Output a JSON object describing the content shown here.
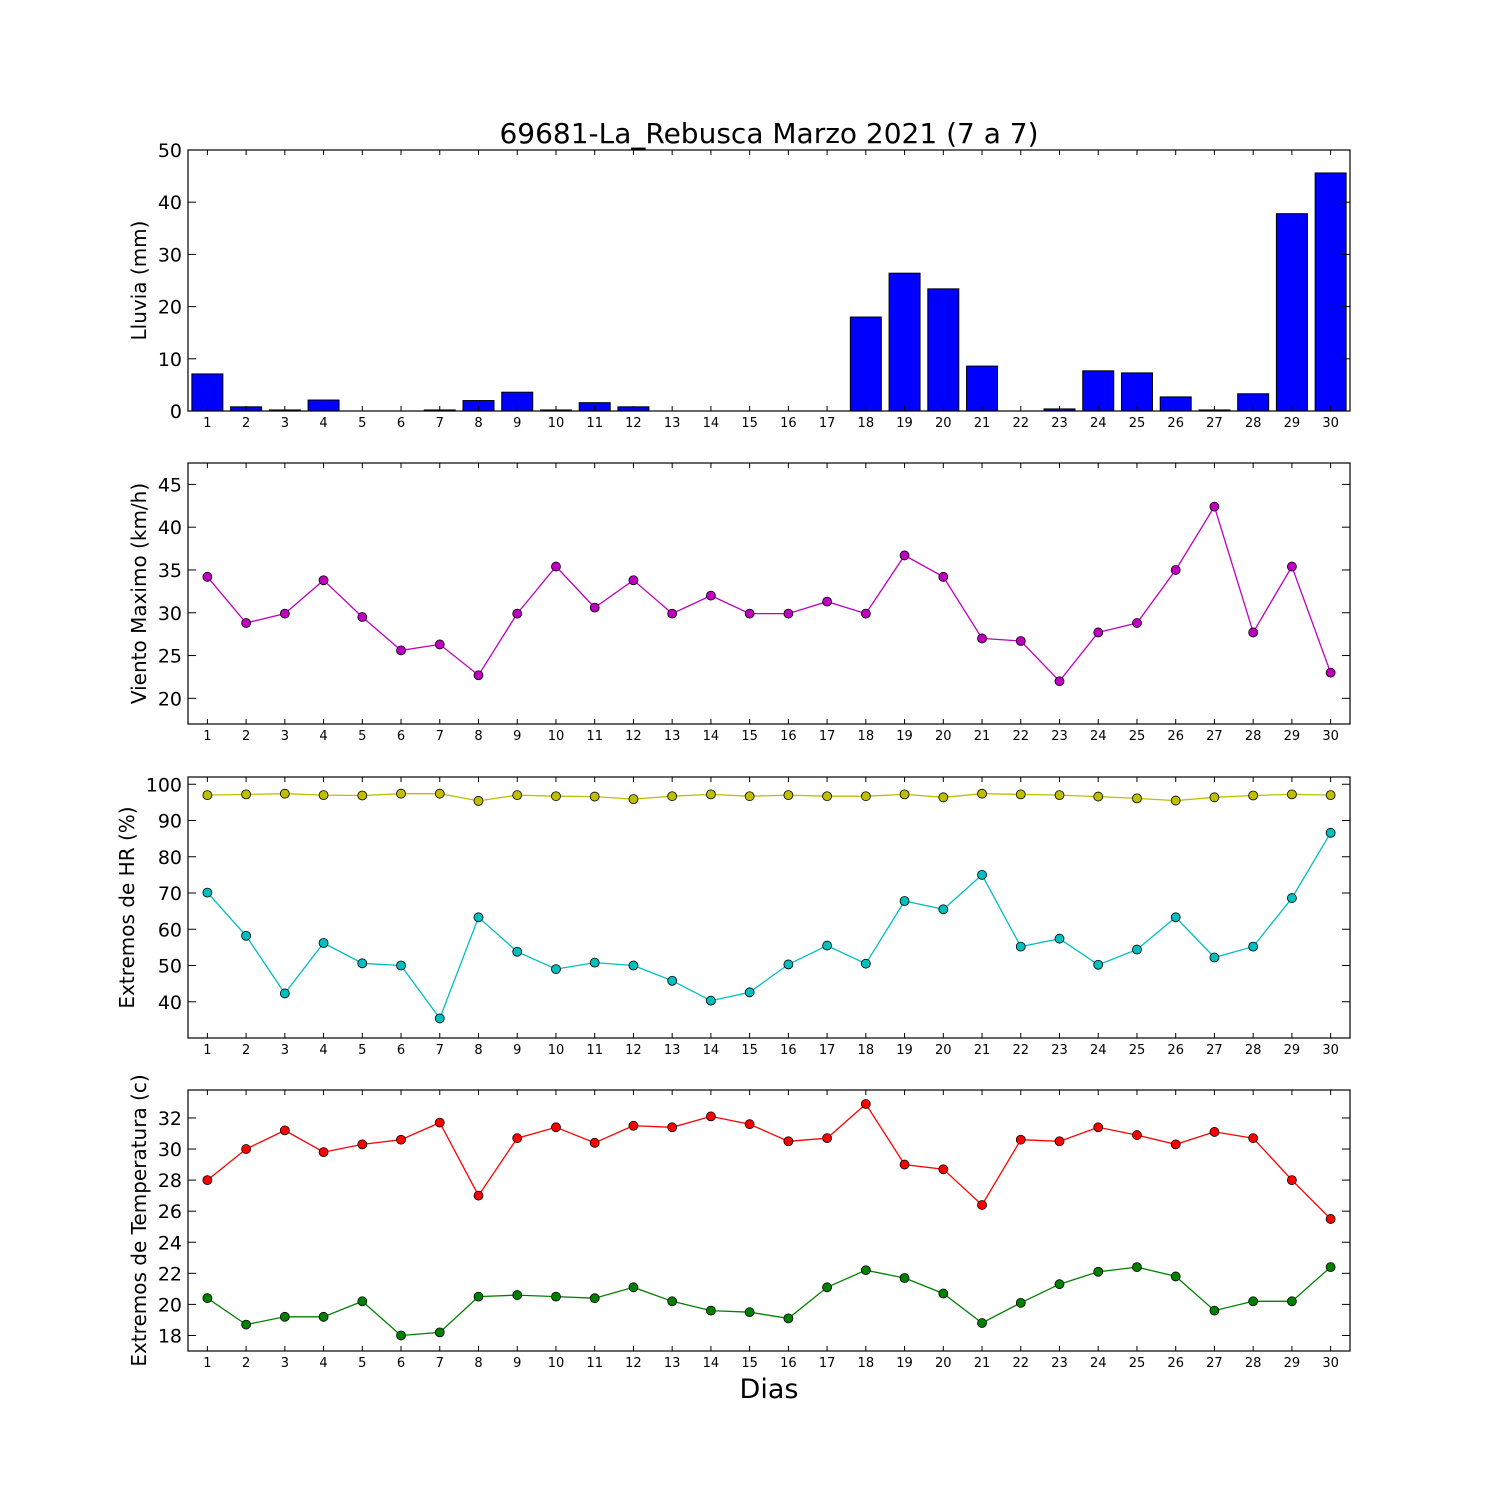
{
  "title": "69681-La_Rebusca Marzo 2021  (7 a 7)",
  "xlabel": "Dias",
  "chart_data": [
    {
      "type": "bar",
      "ylabel": "Lluvia (mm)",
      "ylim": [
        0,
        50
      ],
      "yticks": [
        0,
        10,
        20,
        30,
        40,
        50
      ],
      "x": [
        1,
        2,
        3,
        4,
        5,
        6,
        7,
        8,
        9,
        10,
        11,
        12,
        13,
        14,
        15,
        16,
        17,
        18,
        19,
        20,
        21,
        22,
        23,
        24,
        25,
        26,
        27,
        28,
        29,
        30
      ],
      "series": [
        {
          "color": "#0000ff",
          "values": [
            7.1,
            0.8,
            0.2,
            2.1,
            0,
            0,
            0.2,
            2.0,
            3.6,
            0.2,
            1.6,
            0.8,
            0,
            0,
            0,
            0,
            0,
            18.0,
            26.4,
            23.4,
            8.6,
            0,
            0.4,
            7.7,
            7.3,
            2.7,
            0.2,
            3.3,
            37.8,
            45.6
          ]
        }
      ]
    },
    {
      "type": "line",
      "ylabel": "Viento Maximo (km/h)",
      "ylim": [
        17,
        47.5
      ],
      "yticks": [
        20,
        25,
        30,
        35,
        40,
        45
      ],
      "x": [
        1,
        2,
        3,
        4,
        5,
        6,
        7,
        8,
        9,
        10,
        11,
        12,
        13,
        14,
        15,
        16,
        17,
        18,
        19,
        20,
        21,
        22,
        23,
        24,
        25,
        26,
        27,
        28,
        29,
        30
      ],
      "series": [
        {
          "color": "#bf00bf",
          "values": [
            34.2,
            28.8,
            29.9,
            33.8,
            29.5,
            25.6,
            26.3,
            22.7,
            29.9,
            35.4,
            30.6,
            33.8,
            29.9,
            32.0,
            29.9,
            29.9,
            31.3,
            29.9,
            36.7,
            34.2,
            27.0,
            26.7,
            22.0,
            27.7,
            28.8,
            35.0,
            42.4,
            27.7,
            35.4,
            23.0
          ]
        }
      ]
    },
    {
      "type": "line",
      "ylabel": "Extremos de HR (%)",
      "ylim": [
        30,
        102
      ],
      "yticks": [
        40,
        50,
        60,
        70,
        80,
        90,
        100
      ],
      "x": [
        1,
        2,
        3,
        4,
        5,
        6,
        7,
        8,
        9,
        10,
        11,
        12,
        13,
        14,
        15,
        16,
        17,
        18,
        19,
        20,
        21,
        22,
        23,
        24,
        25,
        26,
        27,
        28,
        29,
        30
      ],
      "series": [
        {
          "color": "#bfbf00",
          "values": [
            97.0,
            97.2,
            97.4,
            97.0,
            96.9,
            97.4,
            97.4,
            95.4,
            97.0,
            96.7,
            96.6,
            95.9,
            96.7,
            97.2,
            96.7,
            97.0,
            96.7,
            96.7,
            97.2,
            96.4,
            97.4,
            97.2,
            97.0,
            96.6,
            96.1,
            95.5,
            96.4,
            96.9,
            97.2,
            97.0
          ]
        },
        {
          "color": "#00bfbf",
          "values": [
            70.1,
            58.2,
            42.3,
            56.2,
            50.6,
            50.0,
            35.4,
            63.3,
            53.8,
            49.0,
            50.8,
            50.0,
            45.8,
            40.3,
            42.6,
            50.3,
            55.5,
            50.5,
            67.8,
            65.5,
            75.0,
            55.2,
            57.4,
            50.2,
            54.4,
            63.3,
            52.2,
            55.2,
            68.6,
            86.6
          ]
        }
      ]
    },
    {
      "type": "line",
      "ylabel": "Extremos de Temperatura (c)",
      "ylim": [
        17,
        33.8
      ],
      "yticks": [
        18,
        20,
        22,
        24,
        26,
        28,
        30,
        32
      ],
      "x": [
        1,
        2,
        3,
        4,
        5,
        6,
        7,
        8,
        9,
        10,
        11,
        12,
        13,
        14,
        15,
        16,
        17,
        18,
        19,
        20,
        21,
        22,
        23,
        24,
        25,
        26,
        27,
        28,
        29,
        30
      ],
      "series": [
        {
          "color": "#ff0000",
          "values": [
            28.0,
            30.0,
            31.2,
            29.8,
            30.3,
            30.6,
            31.7,
            27.0,
            30.7,
            31.4,
            30.4,
            31.5,
            31.4,
            32.1,
            31.6,
            30.5,
            30.7,
            32.9,
            29.0,
            28.7,
            26.4,
            30.6,
            30.5,
            31.4,
            30.9,
            30.3,
            31.1,
            30.7,
            28.0,
            25.5
          ]
        },
        {
          "color": "#008000",
          "values": [
            20.4,
            18.7,
            19.2,
            19.2,
            20.2,
            18.0,
            18.2,
            20.5,
            20.6,
            20.5,
            20.4,
            21.1,
            20.2,
            19.6,
            19.5,
            19.1,
            21.1,
            22.2,
            21.7,
            20.7,
            18.8,
            20.1,
            21.3,
            22.1,
            22.4,
            21.8,
            19.6,
            20.2,
            20.2,
            22.4
          ]
        }
      ]
    }
  ]
}
